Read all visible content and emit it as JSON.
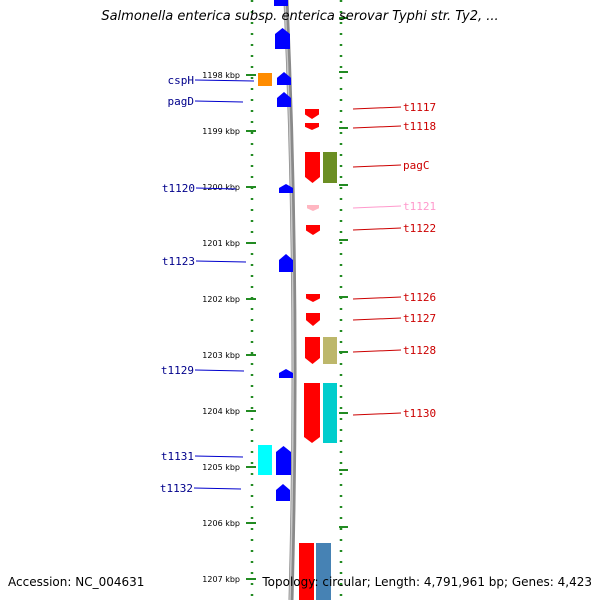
{
  "title": "Salmonella enterica subsp. enterica serovar Typhi str. Ty2, ...",
  "footer": {
    "accession": "Accession: NC_004631",
    "summary": "Topology: circular; Length: 4,791,961 bp; Genes: 4,423"
  },
  "colors": {
    "forward_gene": "#0000ff",
    "reverse_gene": "#ff0000",
    "forward_label": "#00008b",
    "reverse_label": "#cc0000",
    "faded_label": "#ff99cc",
    "tick": "#228b22",
    "axis": "#808080"
  },
  "scale_ticks": [
    {
      "label": "1198 kbp",
      "kbp": 1198
    },
    {
      "label": "1199 kbp",
      "kbp": 1199
    },
    {
      "label": "1200 kbp",
      "kbp": 1200
    },
    {
      "label": "1201 kbp",
      "kbp": 1201
    },
    {
      "label": "1202 kbp",
      "kbp": 1202
    },
    {
      "label": "1203 kbp",
      "kbp": 1203
    },
    {
      "label": "1204 kbp",
      "kbp": 1204
    },
    {
      "label": "1205 kbp",
      "kbp": 1205
    },
    {
      "label": "1206 kbp",
      "kbp": 1206
    },
    {
      "label": "1207 kbp",
      "kbp": 1207
    }
  ],
  "forward_labels": [
    {
      "text": "cspH",
      "id": "cspH"
    },
    {
      "text": "pagD",
      "id": "pagD"
    },
    {
      "text": "t1120",
      "id": "t1120"
    },
    {
      "text": "t1123",
      "id": "t1123"
    },
    {
      "text": "t1129",
      "id": "t1129"
    },
    {
      "text": "t1131",
      "id": "t1131"
    },
    {
      "text": "t1132",
      "id": "t1132"
    }
  ],
  "reverse_labels": [
    {
      "text": "t1117",
      "id": "t1117"
    },
    {
      "text": "t1118",
      "id": "t1118"
    },
    {
      "text": "pagC",
      "id": "pagC"
    },
    {
      "text": "t1121",
      "id": "t1121",
      "faded": true
    },
    {
      "text": "t1122",
      "id": "t1122"
    },
    {
      "text": "t1126",
      "id": "t1126"
    },
    {
      "text": "t1127",
      "id": "t1127"
    },
    {
      "text": "t1128",
      "id": "t1128"
    },
    {
      "text": "t1130",
      "id": "t1130"
    }
  ]
}
